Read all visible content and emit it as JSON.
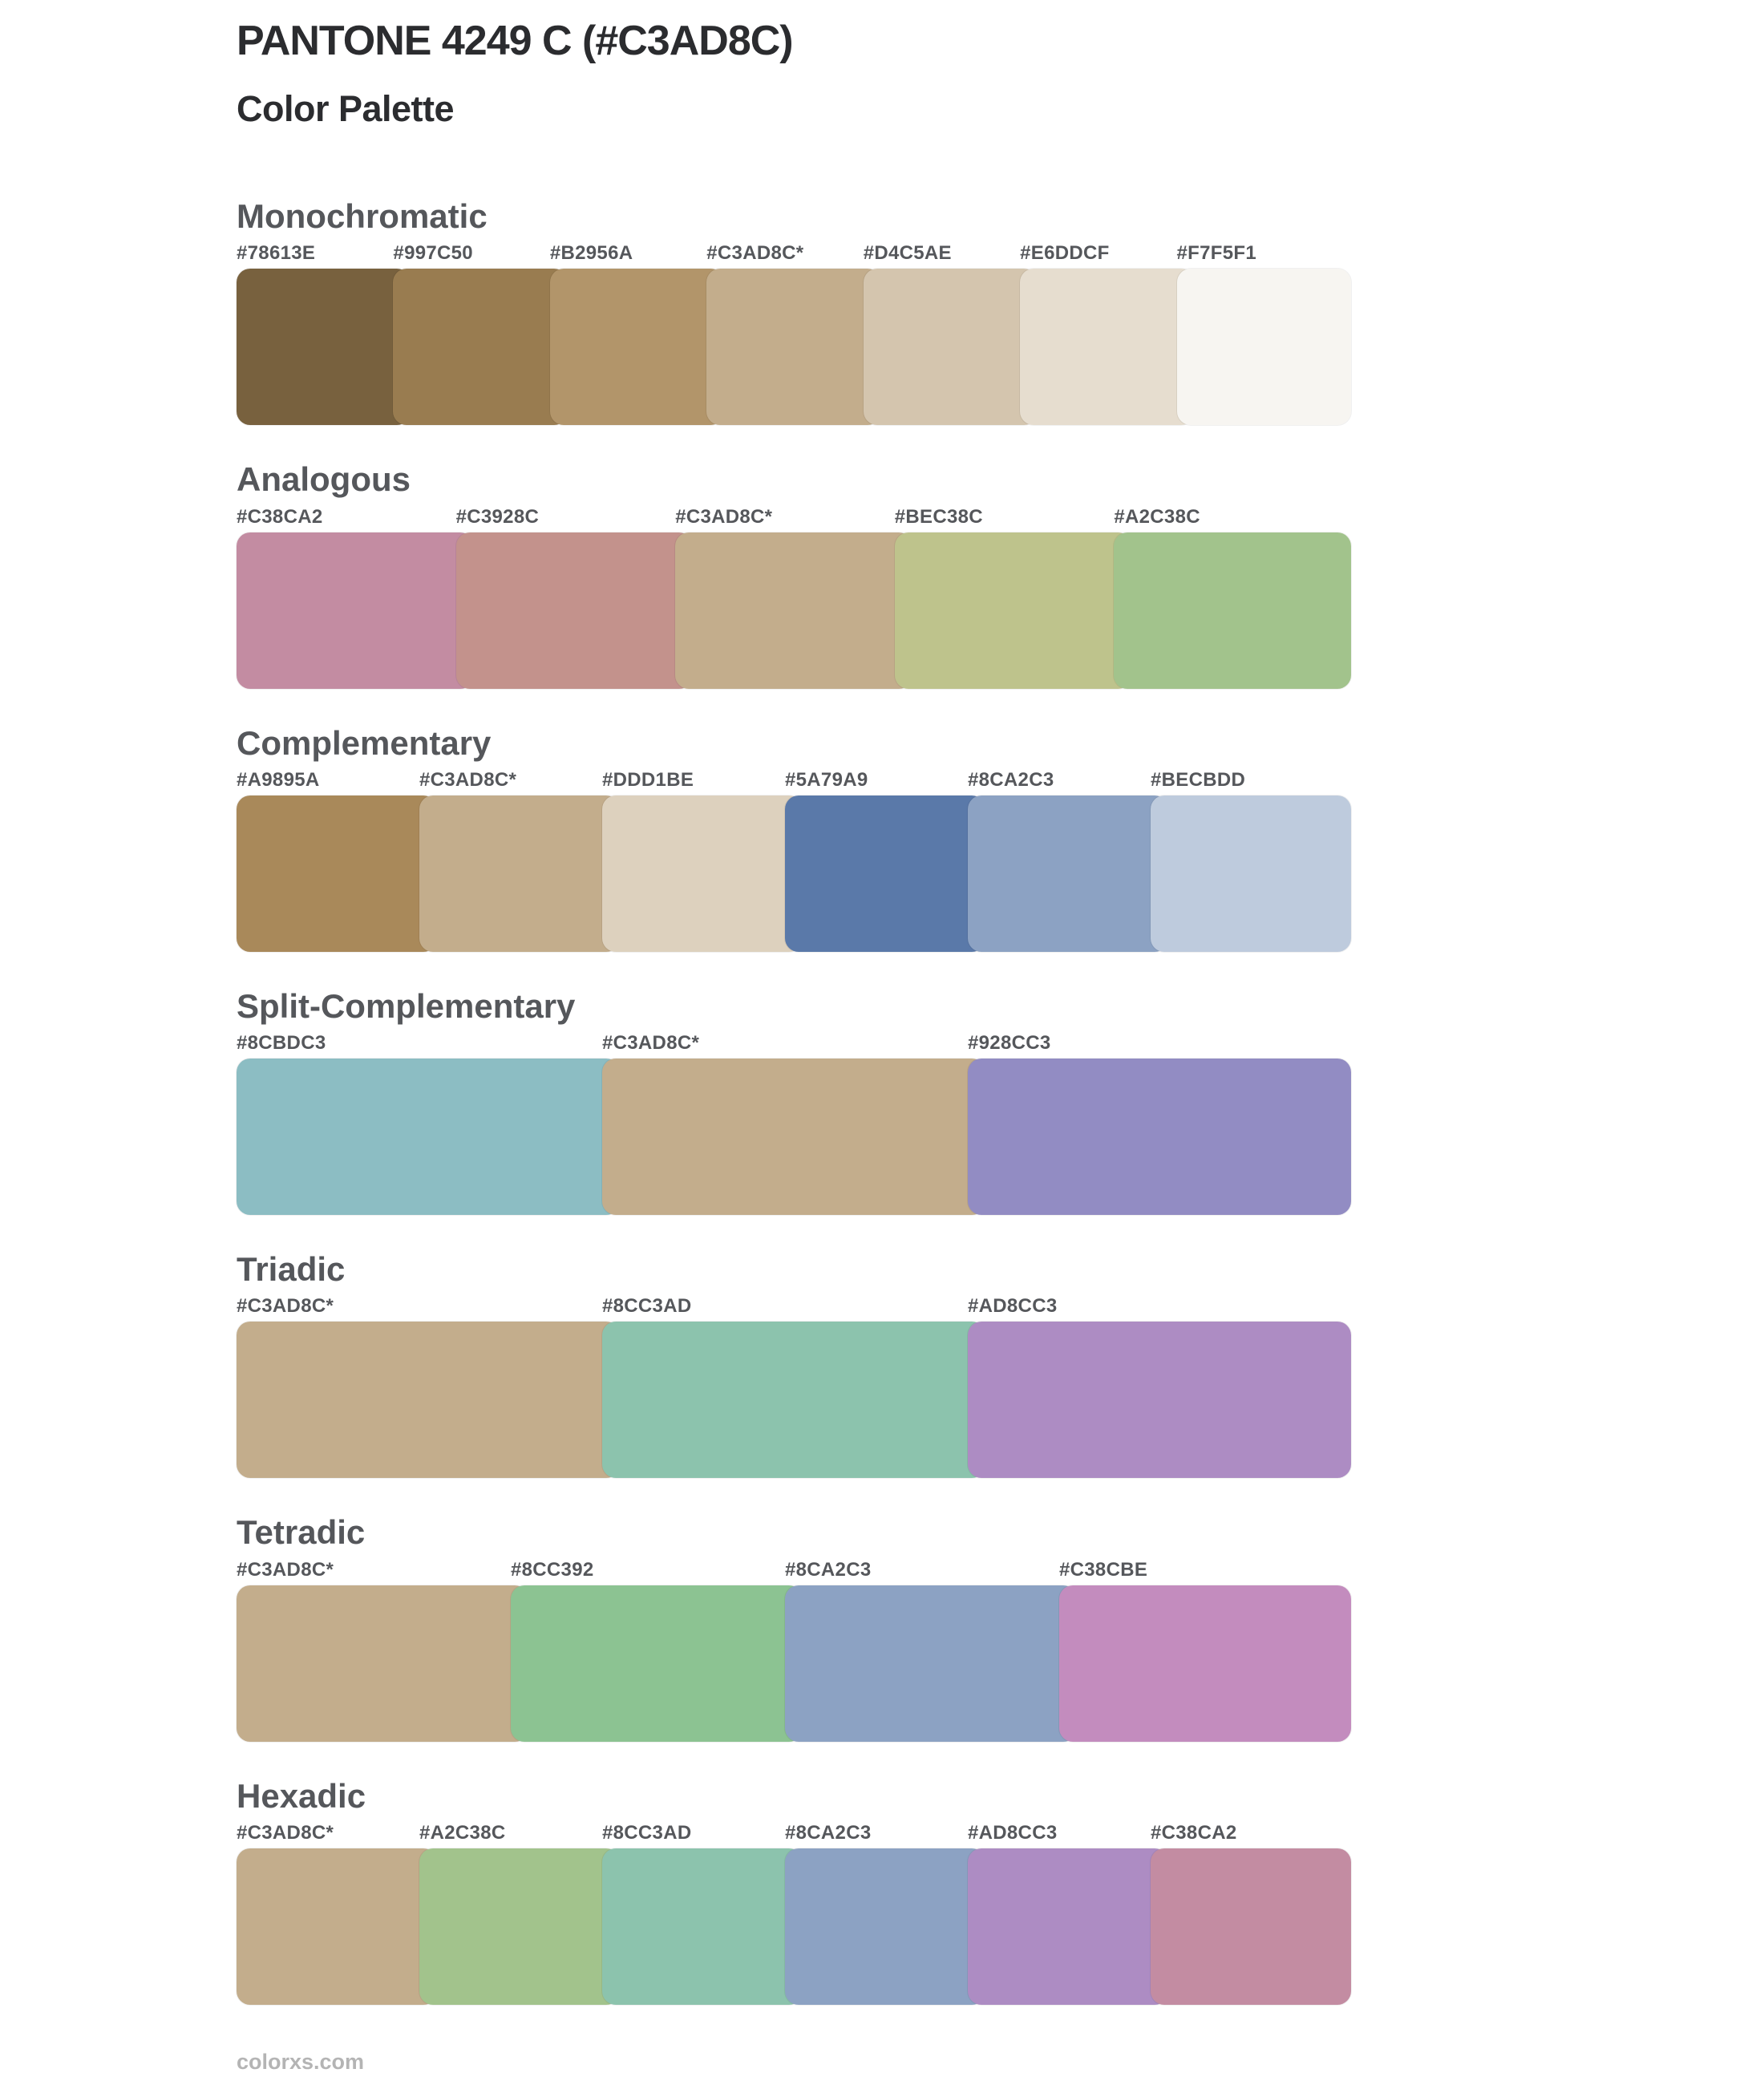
{
  "header": {
    "title": "PANTONE 4249 C (#C3AD8C)",
    "subtitle": "Color Palette",
    "base_color": "#C3AD8C"
  },
  "footer": {
    "site": "colorxs.com"
  },
  "palettes": [
    {
      "name": "Monochromatic",
      "colors": [
        {
          "label": "#78613E",
          "hex": "#78613E"
        },
        {
          "label": "#997C50",
          "hex": "#997C50"
        },
        {
          "label": "#B2956A",
          "hex": "#B2956A"
        },
        {
          "label": "#C3AD8C*",
          "hex": "#C3AD8C"
        },
        {
          "label": "#D4C5AE",
          "hex": "#D4C5AE"
        },
        {
          "label": "#E6DDCF",
          "hex": "#E6DDCF"
        },
        {
          "label": "#F7F5F1",
          "hex": "#F7F5F1"
        }
      ]
    },
    {
      "name": "Analogous",
      "colors": [
        {
          "label": "#C38CA2",
          "hex": "#C38CA2"
        },
        {
          "label": "#C3928C",
          "hex": "#C3928C"
        },
        {
          "label": "#C3AD8C*",
          "hex": "#C3AD8C"
        },
        {
          "label": "#BEC38C",
          "hex": "#BEC38C"
        },
        {
          "label": "#A2C38C",
          "hex": "#A2C38C"
        }
      ]
    },
    {
      "name": "Complementary",
      "colors": [
        {
          "label": "#A9895A",
          "hex": "#A9895A"
        },
        {
          "label": "#C3AD8C*",
          "hex": "#C3AD8C"
        },
        {
          "label": "#DDD1BE",
          "hex": "#DDD1BE"
        },
        {
          "label": "#5A79A9",
          "hex": "#5A79A9"
        },
        {
          "label": "#8CA2C3",
          "hex": "#8CA2C3"
        },
        {
          "label": "#BECBDD",
          "hex": "#BECBDD"
        }
      ]
    },
    {
      "name": "Split-Complementary",
      "colors": [
        {
          "label": "#8CBDC3",
          "hex": "#8CBDC3"
        },
        {
          "label": "#C3AD8C*",
          "hex": "#C3AD8C"
        },
        {
          "label": "#928CC3",
          "hex": "#928CC3"
        }
      ]
    },
    {
      "name": "Triadic",
      "colors": [
        {
          "label": "#C3AD8C*",
          "hex": "#C3AD8C"
        },
        {
          "label": "#8CC3AD",
          "hex": "#8CC3AD"
        },
        {
          "label": "#AD8CC3",
          "hex": "#AD8CC3"
        }
      ]
    },
    {
      "name": "Tetradic",
      "colors": [
        {
          "label": "#C3AD8C*",
          "hex": "#C3AD8C"
        },
        {
          "label": "#8CC392",
          "hex": "#8CC392"
        },
        {
          "label": "#8CA2C3",
          "hex": "#8CA2C3"
        },
        {
          "label": "#C38CBE",
          "hex": "#C38CBE"
        }
      ]
    },
    {
      "name": "Hexadic",
      "colors": [
        {
          "label": "#C3AD8C*",
          "hex": "#C3AD8C"
        },
        {
          "label": "#A2C38C",
          "hex": "#A2C38C"
        },
        {
          "label": "#8CC3AD",
          "hex": "#8CC3AD"
        },
        {
          "label": "#8CA2C3",
          "hex": "#8CA2C3"
        },
        {
          "label": "#AD8CC3",
          "hex": "#AD8CC3"
        },
        {
          "label": "#C38CA2",
          "hex": "#C38CA2"
        }
      ]
    }
  ]
}
